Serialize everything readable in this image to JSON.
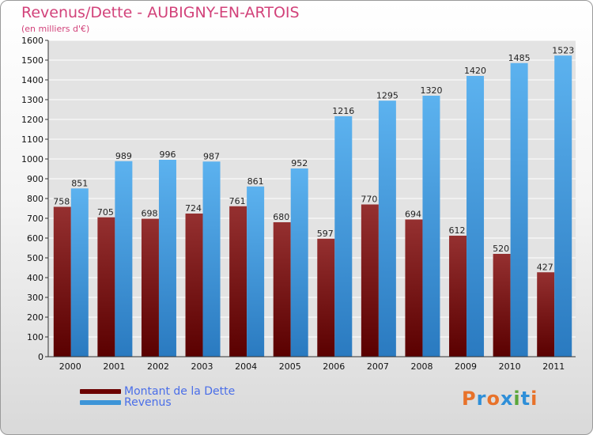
{
  "title": "Revenus/Dette - AUBIGNY-EN-ARTOIS",
  "subtitle": "(en milliers d'€)",
  "brand": {
    "text": "Proxiti",
    "letter_colors": [
      "#e8722a",
      "#2f8fd8",
      "#e8722a",
      "#2f8fd8",
      "#5aa63a",
      "#2f8fd8",
      "#e8722a"
    ]
  },
  "legend": [
    {
      "label": "Montant de la Dette",
      "color": "#6b0000"
    },
    {
      "label": "Revenus",
      "color": "#3d95d8"
    }
  ],
  "chart_data": {
    "type": "bar",
    "categories": [
      "2000",
      "2001",
      "2002",
      "2003",
      "2004",
      "2005",
      "2006",
      "2007",
      "2008",
      "2009",
      "2010",
      "2011"
    ],
    "series": [
      {
        "name": "Montant de la Dette",
        "values": [
          758,
          705,
          698,
          724,
          761,
          680,
          597,
          770,
          694,
          612,
          520,
          427
        ],
        "color": "#6b0000"
      },
      {
        "name": "Revenus",
        "values": [
          851,
          989,
          996,
          987,
          861,
          952,
          1216,
          1295,
          1320,
          1420,
          1485,
          1523
        ],
        "color": "#3d95d8"
      }
    ],
    "ylim": [
      0,
      1600
    ],
    "yticks": [
      0,
      100,
      200,
      300,
      400,
      500,
      600,
      700,
      800,
      900,
      1000,
      1100,
      1200,
      1300,
      1400,
      1500,
      1600
    ],
    "grid": true,
    "legend_position": "bottom-left"
  }
}
